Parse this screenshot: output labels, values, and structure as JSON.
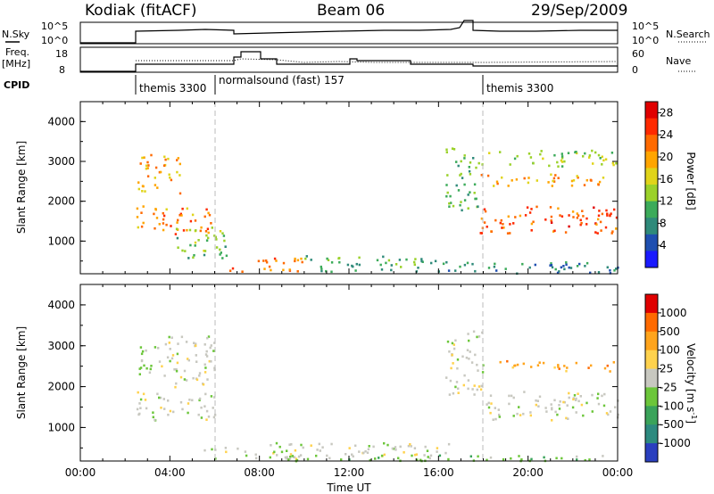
{
  "header": {
    "station": "Kodiak (fitACF)",
    "beam": "Beam 06",
    "date": "29/Sep/2009"
  },
  "status_panels": {
    "nsky_label": "N.Sky",
    "nsky_ticks": [
      "10^5",
      "10^0"
    ],
    "nsearch_label": "N.Search",
    "nsearch_ticks": [
      "10^5",
      "10^0"
    ],
    "freq_label": "Freq.",
    "freq_unit": "[MHz]",
    "freq_ticks": [
      "18",
      "8"
    ],
    "nave_label": "Nave",
    "nave_ticks": [
      "60",
      "0"
    ],
    "cpid_label": "CPID",
    "cpid_segments": [
      {
        "label": "themis 3300",
        "start_hour": 2.5
      },
      {
        "label": "normalsound (fast) 157",
        "start_hour": 6.0
      },
      {
        "label": "themis 3300",
        "start_hour": 18.0
      }
    ]
  },
  "chart_data": [
    {
      "type": "heatmap",
      "name": "power",
      "ylabel": "Slant Range [km]",
      "xlabel": "",
      "x_range_hours": [
        0,
        24
      ],
      "ylim": [
        180,
        4500
      ],
      "yticks": [
        "1000",
        "2000",
        "3000",
        "4000"
      ],
      "colorbar": {
        "label": "Power [dB]",
        "ticks": [
          "4",
          "8",
          "12",
          "16",
          "20",
          "24",
          "28"
        ],
        "range": [
          0,
          30
        ],
        "colors": [
          "#1a1aff",
          "#1f4fb0",
          "#2f8a7a",
          "#3cab5a",
          "#9bd12a",
          "#e0d41a",
          "#ffa500",
          "#ff6a00",
          "#ff2a00",
          "#e00000"
        ]
      },
      "echo_regions": [
        {
          "t0": 2.5,
          "t1": 6.0,
          "r0": 1200,
          "r1": 1900,
          "val": 21
        },
        {
          "t0": 2.5,
          "t1": 4.5,
          "r0": 2200,
          "r1": 3200,
          "val": 19
        },
        {
          "t0": 4.0,
          "t1": 6.5,
          "r0": 600,
          "r1": 1400,
          "val": 12
        },
        {
          "t0": 6.5,
          "t1": 10.0,
          "r0": 250,
          "r1": 600,
          "val": 22
        },
        {
          "t0": 10.0,
          "t1": 16.0,
          "r0": 250,
          "r1": 650,
          "val": 10
        },
        {
          "t0": 16.0,
          "t1": 24.0,
          "r0": 200,
          "r1": 500,
          "val": 8
        },
        {
          "t0": 16.3,
          "t1": 17.8,
          "r0": 1800,
          "r1": 3400,
          "val": 11
        },
        {
          "t0": 17.8,
          "t1": 24.0,
          "r0": 1200,
          "r1": 1900,
          "val": 24
        },
        {
          "t0": 17.8,
          "t1": 24.0,
          "r0": 2400,
          "r1": 2700,
          "val": 19
        },
        {
          "t0": 17.8,
          "t1": 24.0,
          "r0": 2900,
          "r1": 3300,
          "val": 14
        }
      ]
    },
    {
      "type": "heatmap",
      "name": "velocity",
      "ylabel": "Slant Range [km]",
      "xlabel": "Time UT",
      "x_range_hours": [
        0,
        24
      ],
      "xticks": [
        "00:00",
        "04:00",
        "08:00",
        "12:00",
        "16:00",
        "20:00",
        "00:00"
      ],
      "ylim": [
        180,
        4500
      ],
      "yticks": [
        "1000",
        "2000",
        "3000",
        "4000"
      ],
      "colorbar": {
        "label": "Velocity [m s^-1]",
        "ticks": [
          "1000",
          "500",
          "100",
          "25",
          "-25",
          "-100",
          "-500",
          "-1000"
        ],
        "colors": [
          "#2a3fbf",
          "#2d8a7f",
          "#3aa35a",
          "#6cc63a",
          "#c8c8c0",
          "#ffd24d",
          "#ffa41c",
          "#ff6a00",
          "#e00000"
        ]
      },
      "echo_regions": [
        {
          "t0": 2.5,
          "t1": 6.0,
          "r0": 1200,
          "r1": 1900,
          "cls": 4
        },
        {
          "t0": 2.5,
          "t1": 3.5,
          "r0": 2300,
          "r1": 3200,
          "cls": 3
        },
        {
          "t0": 3.5,
          "t1": 6.0,
          "r0": 2000,
          "r1": 3300,
          "cls": 4
        },
        {
          "t0": 5.5,
          "t1": 10.0,
          "r0": 250,
          "r1": 650,
          "cls": 4
        },
        {
          "t0": 10.0,
          "t1": 16.5,
          "r0": 250,
          "r1": 650,
          "cls": 4
        },
        {
          "t0": 7.0,
          "t1": 24.0,
          "r0": 200,
          "r1": 350,
          "cls": 3
        },
        {
          "t0": 16.3,
          "t1": 18.0,
          "r0": 1800,
          "r1": 3400,
          "cls": 4
        },
        {
          "t0": 18.0,
          "t1": 24.0,
          "r0": 1200,
          "r1": 1900,
          "cls": 4
        },
        {
          "t0": 18.5,
          "t1": 24.0,
          "r0": 2400,
          "r1": 2650,
          "cls": 6
        }
      ]
    }
  ]
}
